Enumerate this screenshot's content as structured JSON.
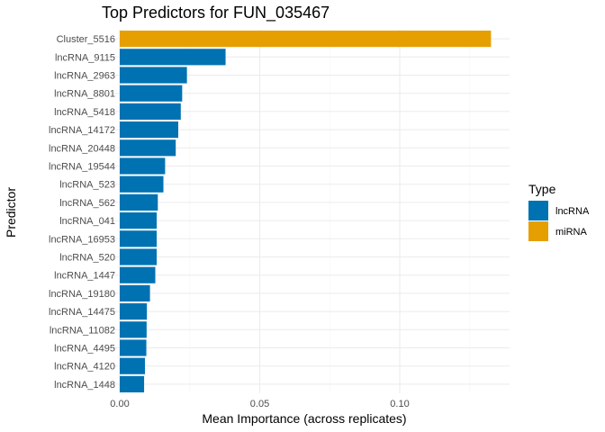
{
  "chart_data": {
    "type": "bar",
    "orientation": "horizontal",
    "title": "Top Predictors for FUN_035467",
    "xlabel": "Mean Importance (across replicates)",
    "ylabel": "Predictor",
    "xlim": [
      0,
      0.138
    ],
    "xticks": [
      0.0,
      0.05,
      0.1
    ],
    "xtick_labels": [
      "0.00",
      "0.05",
      "0.10"
    ],
    "grid": true,
    "legend": {
      "title": "Type",
      "placement": "right",
      "entries": [
        {
          "name": "lncRNA",
          "color": "#0072B2"
        },
        {
          "name": "miRNA",
          "color": "#E69F00"
        }
      ]
    },
    "categories": [
      "Cluster_5516",
      "lncRNA_9115",
      "lncRNA_2963",
      "lncRNA_8801",
      "lncRNA_5418",
      "lncRNA_14172",
      "lncRNA_20448",
      "lncRNA_19544",
      "lncRNA_523",
      "lncRNA_562",
      "lncRNA_041",
      "lncRNA_16953",
      "lncRNA_520",
      "lncRNA_1447",
      "lncRNA_19180",
      "lncRNA_14475",
      "lncRNA_11082",
      "lncRNA_4495",
      "lncRNA_4120",
      "lncRNA_1448"
    ],
    "values": [
      0.1326,
      0.0378,
      0.024,
      0.0223,
      0.0218,
      0.0209,
      0.02,
      0.0162,
      0.0156,
      0.0136,
      0.0132,
      0.0132,
      0.0132,
      0.0127,
      0.0108,
      0.0097,
      0.0096,
      0.0095,
      0.009,
      0.0087
    ],
    "types": [
      "miRNA",
      "lncRNA",
      "lncRNA",
      "lncRNA",
      "lncRNA",
      "lncRNA",
      "lncRNA",
      "lncRNA",
      "lncRNA",
      "lncRNA",
      "lncRNA",
      "lncRNA",
      "lncRNA",
      "lncRNA",
      "lncRNA",
      "lncRNA",
      "lncRNA",
      "lncRNA",
      "lncRNA",
      "lncRNA"
    ]
  }
}
